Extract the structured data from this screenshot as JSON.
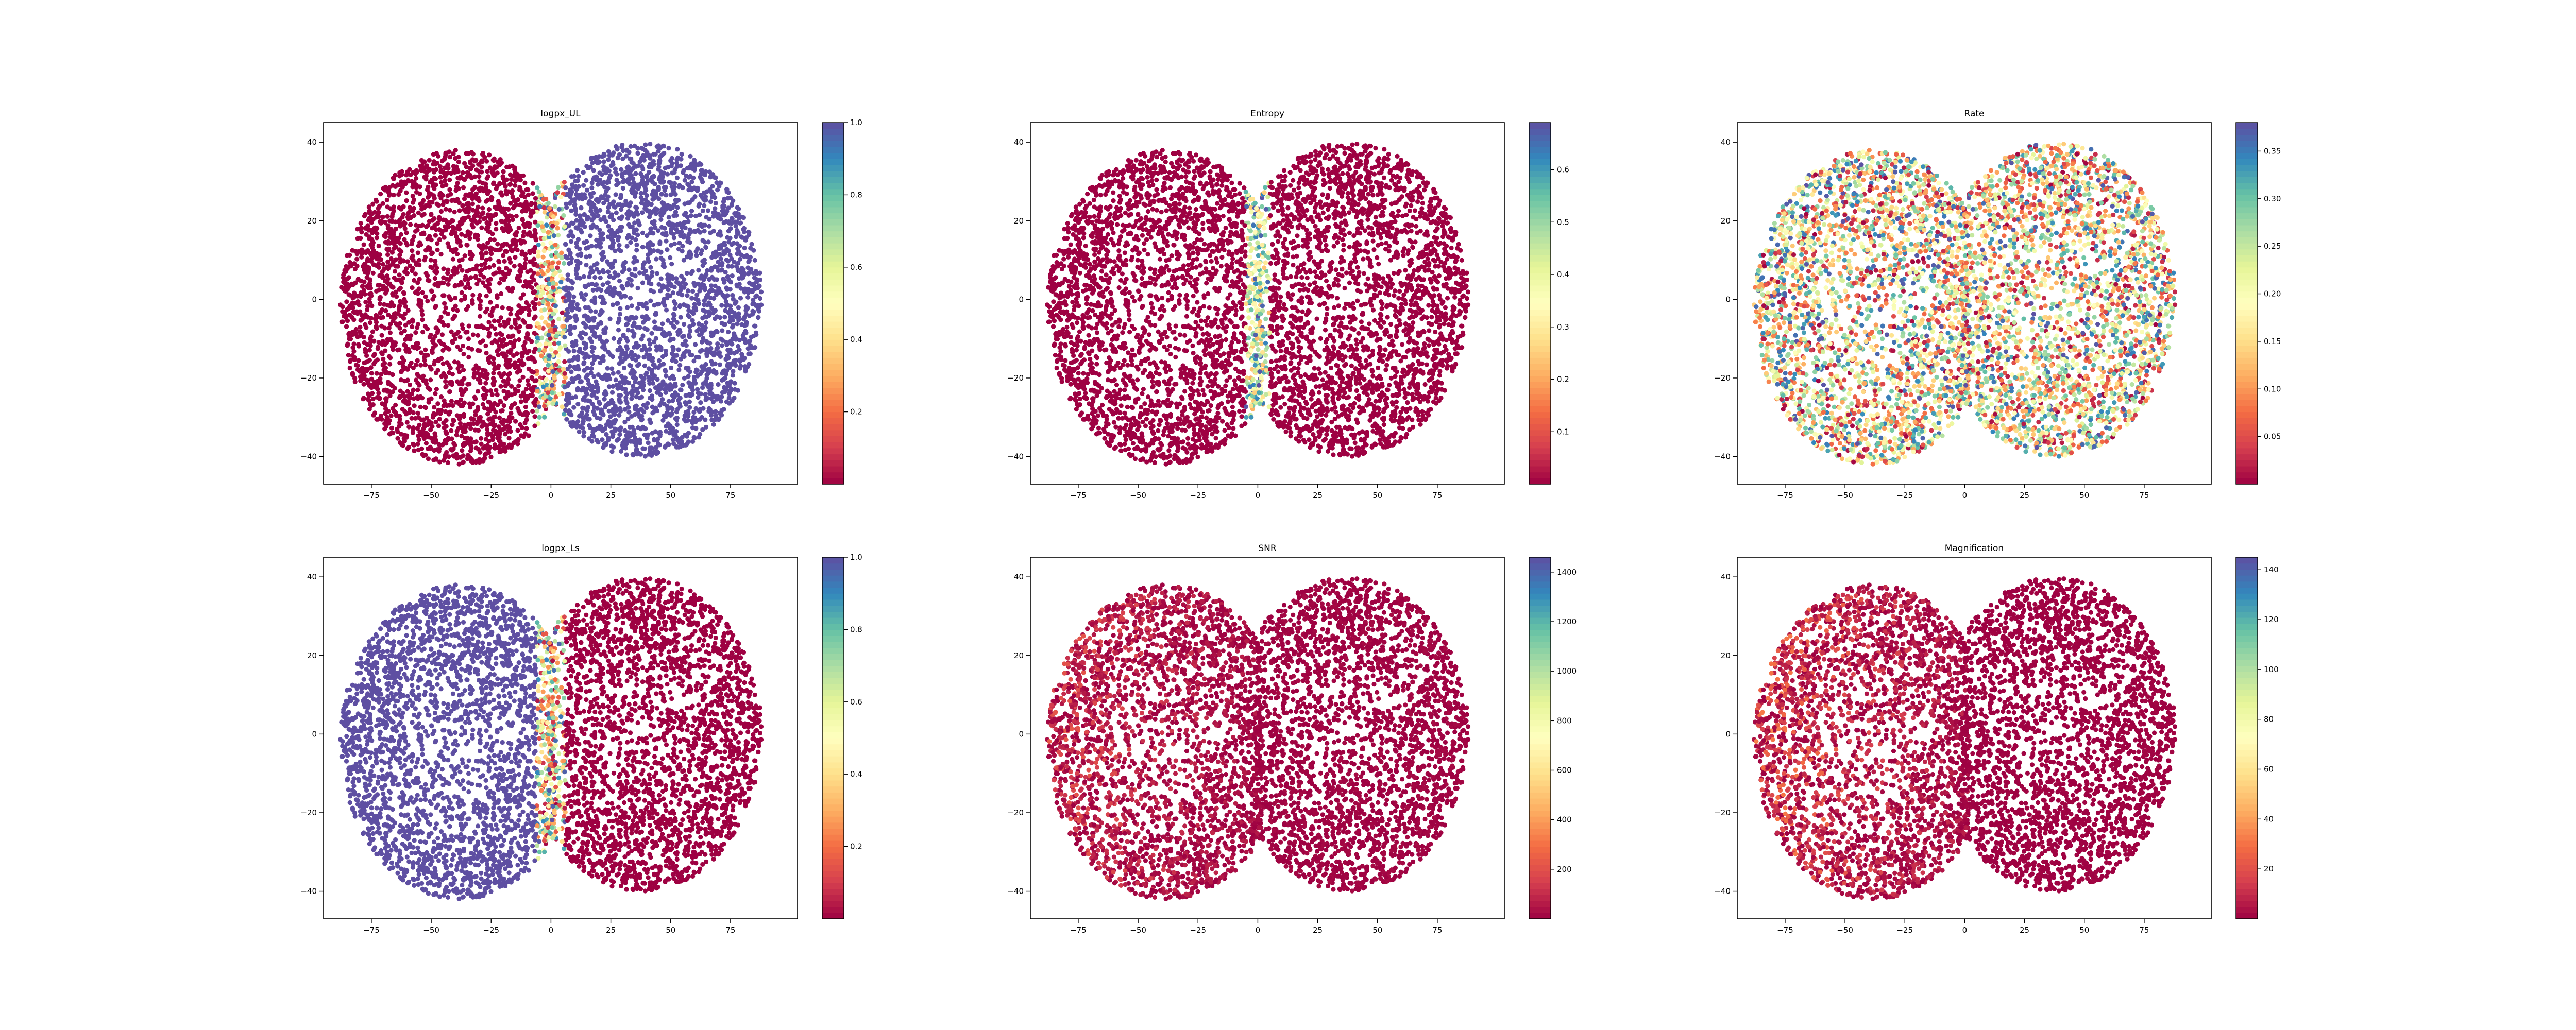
{
  "figure": {
    "background": "#ffffff",
    "colormap": "Spectral",
    "colormap_stops": [
      "#9e0142",
      "#d53e4f",
      "#f46d43",
      "#fdae61",
      "#fee08b",
      "#ffffbf",
      "#e6f598",
      "#abdda4",
      "#66c2a5",
      "#3288bd",
      "#5e4fa2"
    ]
  },
  "chart_data": [
    {
      "type": "scatter",
      "title": "logpx_UL",
      "xlabel": "",
      "ylabel": "",
      "xlim": [
        -95,
        103
      ],
      "ylim": [
        -47,
        45
      ],
      "xticks": [
        -75,
        -50,
        -25,
        0,
        25,
        50,
        75
      ],
      "yticks": [
        -40,
        -20,
        0,
        20,
        40
      ],
      "grid": false,
      "clusters": {
        "left_center": [
          -38,
          -2
        ],
        "right_center": [
          38,
          0
        ],
        "count_per_cluster": 2600
      },
      "color_pattern": "split",
      "color_values": {
        "left": 0.0,
        "right": 1.0,
        "boundary": "mixed"
      },
      "colorbar": {
        "vmin": 0.0,
        "vmax": 1.0,
        "ticks": [
          0.2,
          0.4,
          0.6,
          0.8,
          1.0
        ],
        "tick_labels": [
          "0.2",
          "0.4",
          "0.6",
          "0.8",
          "1.0"
        ]
      }
    },
    {
      "type": "scatter",
      "title": "Entropy",
      "xlabel": "",
      "ylabel": "",
      "xlim": [
        -95,
        103
      ],
      "ylim": [
        -47,
        45
      ],
      "xticks": [
        -75,
        -50,
        -25,
        0,
        25,
        50,
        75
      ],
      "yticks": [
        -40,
        -20,
        0,
        20,
        40
      ],
      "grid": false,
      "clusters": {
        "left_center": [
          -38,
          -2
        ],
        "right_center": [
          38,
          0
        ],
        "count_per_cluster": 2600
      },
      "color_pattern": "low_with_high_boundary",
      "color_values": {
        "left": 0.0,
        "right": 0.0,
        "boundary": 0.69
      },
      "colorbar": {
        "vmin": 0.0,
        "vmax": 0.69,
        "ticks": [
          0.1,
          0.2,
          0.3,
          0.4,
          0.5,
          0.6
        ],
        "tick_labels": [
          "0.1",
          "0.2",
          "0.3",
          "0.4",
          "0.5",
          "0.6"
        ]
      }
    },
    {
      "type": "scatter",
      "title": "Rate",
      "xlabel": "",
      "ylabel": "",
      "xlim": [
        -95,
        103
      ],
      "ylim": [
        -47,
        45
      ],
      "xticks": [
        -75,
        -50,
        -25,
        0,
        25,
        50,
        75
      ],
      "yticks": [
        -40,
        -20,
        0,
        20,
        40
      ],
      "grid": false,
      "clusters": {
        "left_center": [
          -38,
          -2
        ],
        "right_center": [
          38,
          0
        ],
        "count_per_cluster": 2600
      },
      "color_pattern": "random",
      "color_values": {
        "min": 0.0,
        "max": 0.38
      },
      "colorbar": {
        "vmin": 0.0,
        "vmax": 0.38,
        "ticks": [
          0.05,
          0.1,
          0.15,
          0.2,
          0.25,
          0.3,
          0.35
        ],
        "tick_labels": [
          "0.05",
          "0.10",
          "0.15",
          "0.20",
          "0.25",
          "0.30",
          "0.35"
        ]
      }
    },
    {
      "type": "scatter",
      "title": "logpx_Ls",
      "xlabel": "",
      "ylabel": "",
      "xlim": [
        -95,
        103
      ],
      "ylim": [
        -47,
        45
      ],
      "xticks": [
        -75,
        -50,
        -25,
        0,
        25,
        50,
        75
      ],
      "yticks": [
        -40,
        -20,
        0,
        20,
        40
      ],
      "grid": false,
      "clusters": {
        "left_center": [
          -38,
          -2
        ],
        "right_center": [
          38,
          0
        ],
        "count_per_cluster": 2600
      },
      "color_pattern": "split",
      "color_values": {
        "left": 1.0,
        "right": 0.0,
        "boundary": "mixed"
      },
      "colorbar": {
        "vmin": 0.0,
        "vmax": 1.0,
        "ticks": [
          0.2,
          0.4,
          0.6,
          0.8,
          1.0
        ],
        "tick_labels": [
          "0.2",
          "0.4",
          "0.6",
          "0.8",
          "1.0"
        ]
      }
    },
    {
      "type": "scatter",
      "title": "SNR",
      "xlabel": "",
      "ylabel": "",
      "xlim": [
        -95,
        103
      ],
      "ylim": [
        -47,
        45
      ],
      "xticks": [
        -75,
        -50,
        -25,
        0,
        25,
        50,
        75
      ],
      "yticks": [
        -40,
        -20,
        0,
        20,
        40
      ],
      "grid": false,
      "clusters": {
        "left_center": [
          -38,
          -2
        ],
        "right_center": [
          38,
          0
        ],
        "count_per_cluster": 2600
      },
      "color_pattern": "low_skewed",
      "color_values": {
        "left_max": 180,
        "right_max": 60
      },
      "colorbar": {
        "vmin": 0,
        "vmax": 1460,
        "ticks": [
          200,
          400,
          600,
          800,
          1000,
          1200,
          1400
        ],
        "tick_labels": [
          "200",
          "400",
          "600",
          "800",
          "1000",
          "1200",
          "1400"
        ]
      }
    },
    {
      "type": "scatter",
      "title": "Magnification",
      "xlabel": "",
      "ylabel": "",
      "xlim": [
        -95,
        103
      ],
      "ylim": [
        -47,
        45
      ],
      "xticks": [
        -75,
        -50,
        -25,
        0,
        25,
        50,
        75
      ],
      "yticks": [
        -40,
        -20,
        0,
        20,
        40
      ],
      "grid": false,
      "clusters": {
        "left_center": [
          -38,
          -2
        ],
        "right_center": [
          38,
          0
        ],
        "count_per_cluster": 2600
      },
      "color_pattern": "low_skewed",
      "color_values": {
        "left_max": 26,
        "right_max": 3
      },
      "colorbar": {
        "vmin": 0,
        "vmax": 145,
        "ticks": [
          20,
          40,
          60,
          80,
          100,
          120,
          140
        ],
        "tick_labels": [
          "20",
          "40",
          "60",
          "80",
          "100",
          "120",
          "140"
        ]
      }
    }
  ]
}
